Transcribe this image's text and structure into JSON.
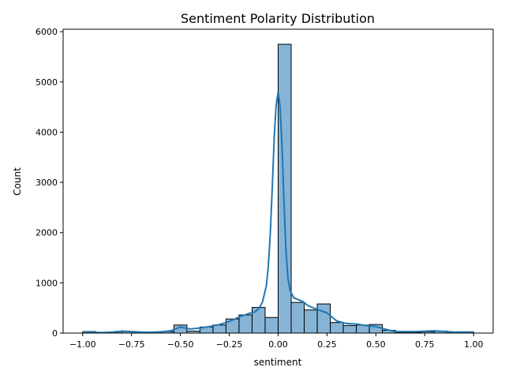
{
  "chart_data": {
    "type": "histogram",
    "title": "Sentiment Polarity Distribution",
    "xlabel": "sentiment",
    "ylabel": "Count",
    "xlim": [
      -1.1,
      1.1
    ],
    "ylim": [
      0,
      6050
    ],
    "xticks": [
      -1.0,
      -0.75,
      -0.5,
      -0.25,
      0.0,
      0.25,
      0.5,
      0.75,
      1.0
    ],
    "xtick_labels": [
      "−1.00",
      "−0.75",
      "−0.50",
      "−0.25",
      "0.00",
      "0.25",
      "0.50",
      "0.75",
      "1.00"
    ],
    "yticks": [
      0,
      1000,
      2000,
      3000,
      4000,
      5000,
      6000
    ],
    "ytick_labels": [
      "0",
      "1000",
      "2000",
      "3000",
      "4000",
      "5000",
      "6000"
    ],
    "grid": false,
    "bin_edges": [
      -1.0,
      -0.9333,
      -0.8667,
      -0.8,
      -0.7333,
      -0.6667,
      -0.6,
      -0.5333,
      -0.4667,
      -0.4,
      -0.3333,
      -0.2667,
      -0.2,
      -0.1333,
      -0.0667,
      0.0,
      0.0667,
      0.1333,
      0.2,
      0.2667,
      0.3333,
      0.4,
      0.4667,
      0.5333,
      0.6,
      0.6667,
      0.7333,
      0.8,
      0.8667,
      0.9333,
      1.0
    ],
    "counts": [
      30,
      5,
      5,
      30,
      10,
      10,
      30,
      160,
      40,
      120,
      160,
      280,
      360,
      510,
      310,
      5750,
      610,
      460,
      580,
      210,
      150,
      160,
      170,
      55,
      15,
      15,
      25,
      40,
      5,
      25
    ],
    "kde": {
      "x": [
        -1.0,
        -0.95,
        -0.9,
        -0.85,
        -0.8,
        -0.75,
        -0.7,
        -0.65,
        -0.6,
        -0.55,
        -0.5,
        -0.45,
        -0.4,
        -0.35,
        -0.3,
        -0.25,
        -0.2,
        -0.15,
        -0.12,
        -0.1,
        -0.08,
        -0.06,
        -0.05,
        -0.04,
        -0.03,
        -0.02,
        -0.01,
        0.0,
        0.01,
        0.02,
        0.03,
        0.04,
        0.05,
        0.06,
        0.08,
        0.1,
        0.13,
        0.15,
        0.2,
        0.25,
        0.3,
        0.35,
        0.4,
        0.45,
        0.5,
        0.55,
        0.6,
        0.7,
        0.8,
        0.9,
        1.0
      ],
      "y": [
        20,
        15,
        10,
        20,
        40,
        30,
        20,
        15,
        25,
        45,
        120,
        80,
        100,
        130,
        170,
        230,
        320,
        390,
        420,
        480,
        620,
        950,
        1350,
        2000,
        2900,
        3900,
        4550,
        4800,
        4500,
        3700,
        2600,
        1650,
        1100,
        860,
        700,
        670,
        620,
        550,
        470,
        400,
        240,
        190,
        180,
        150,
        130,
        75,
        30,
        30,
        45,
        20,
        20
      ]
    },
    "colors": {
      "bar_fill": "#86b4d6",
      "bar_edge": "#000000",
      "kde_line": "#1f77b4"
    }
  }
}
